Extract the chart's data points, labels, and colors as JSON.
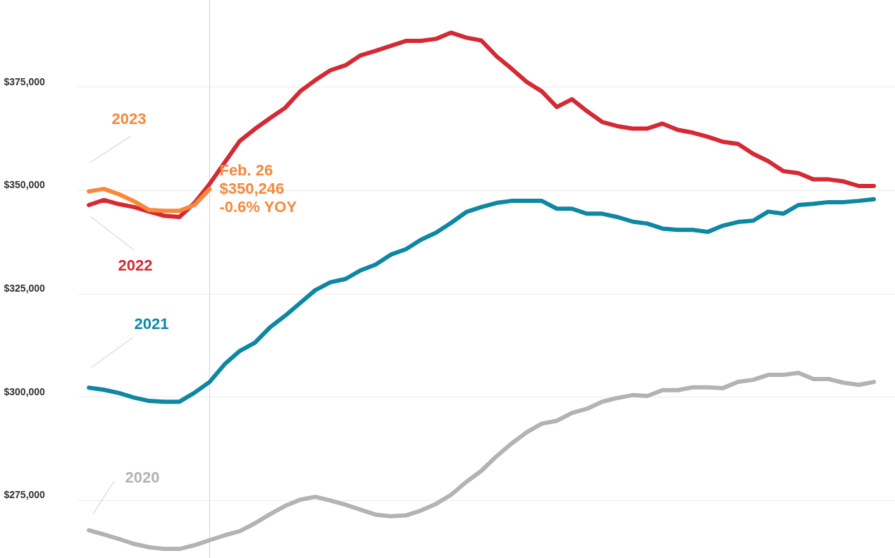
{
  "chart_data": {
    "type": "line",
    "categories": [
      null,
      null,
      null,
      null,
      null,
      null,
      null,
      null,
      null,
      null,
      null,
      null,
      null,
      null,
      null,
      null,
      null,
      null,
      null,
      null,
      null,
      null,
      null,
      null,
      null,
      null,
      null,
      null,
      null,
      null,
      null,
      null,
      null,
      null,
      null,
      null,
      null,
      null,
      null,
      null,
      null,
      null,
      null,
      null,
      null,
      null,
      null,
      null,
      null,
      null,
      null,
      null,
      null
    ],
    "ylim": [
      261000,
      396000
    ],
    "yticks": [
      {
        "value": 275000,
        "label": "$275,000"
      },
      {
        "value": 300000,
        "label": "$300,000"
      },
      {
        "value": 325000,
        "label": "$325,000"
      },
      {
        "value": 350000,
        "label": "$350,000"
      },
      {
        "value": 375000,
        "label": "$375,000"
      }
    ],
    "tick_labels": "y",
    "grid": "y",
    "line_style": "solid",
    "series": [
      {
        "name": "2020",
        "color": "#b3b3b3",
        "values": [
          267700,
          266700,
          265600,
          264400,
          263600,
          263200,
          263200,
          264100,
          265300,
          266500,
          267500,
          269400,
          271600,
          273600,
          275100,
          275800,
          274900,
          273900,
          272700,
          271500,
          271100,
          271300,
          272500,
          274100,
          276300,
          279400,
          282100,
          285600,
          288700,
          291400,
          293500,
          294200,
          296100,
          297100,
          298800,
          299700,
          300400,
          300200,
          301600,
          301600,
          302300,
          302300,
          302100,
          303600,
          304100,
          305300,
          305300,
          305800,
          304300,
          304300,
          303400,
          302900,
          303600
        ]
      },
      {
        "name": "2021",
        "color": "#0e87a3",
        "values": [
          302200,
          301700,
          300900,
          299800,
          299000,
          298800,
          298800,
          301000,
          303600,
          307900,
          311100,
          313100,
          316800,
          319600,
          322700,
          325800,
          327700,
          328500,
          330600,
          332000,
          334400,
          335700,
          338000,
          339700,
          342100,
          344700,
          345900,
          346900,
          347400,
          347400,
          347400,
          345500,
          345500,
          344300,
          344300,
          343500,
          342400,
          341900,
          340700,
          340400,
          340400,
          339900,
          341400,
          342300,
          342600,
          344800,
          344300,
          346400,
          346700,
          347100,
          347100,
          347400,
          347800
        ]
      },
      {
        "name": "2022",
        "color": "#d42a35",
        "values": [
          346400,
          347600,
          346600,
          345900,
          344800,
          343800,
          343500,
          346900,
          351500,
          356700,
          361900,
          364800,
          367400,
          369900,
          373900,
          376600,
          379000,
          380200,
          382600,
          383700,
          384900,
          386100,
          386100,
          386600,
          388100,
          386900,
          386200,
          382400,
          379400,
          376200,
          373900,
          370100,
          372000,
          369100,
          366500,
          365500,
          364900,
          364900,
          366100,
          364600,
          363900,
          362900,
          361700,
          361200,
          358800,
          357000,
          354600,
          354100,
          352600,
          352600,
          352100,
          351000,
          351000
        ]
      },
      {
        "name": "2023",
        "color": "#f7883c",
        "values": [
          349700,
          350300,
          349000,
          347300,
          345200,
          345000,
          345000,
          346400,
          350246,
          null,
          null,
          null,
          null,
          null,
          null,
          null,
          null,
          null,
          null,
          null,
          null,
          null,
          null,
          null,
          null,
          null,
          null,
          null,
          null,
          null,
          null,
          null,
          null,
          null,
          null,
          null,
          null,
          null,
          null,
          null,
          null,
          null,
          null,
          null,
          null,
          null,
          null,
          null,
          null,
          null,
          null,
          null,
          null
        ]
      }
    ],
    "annotations": [
      "Feb. 26\n$350,246\n-0.6% YOY"
    ]
  }
}
